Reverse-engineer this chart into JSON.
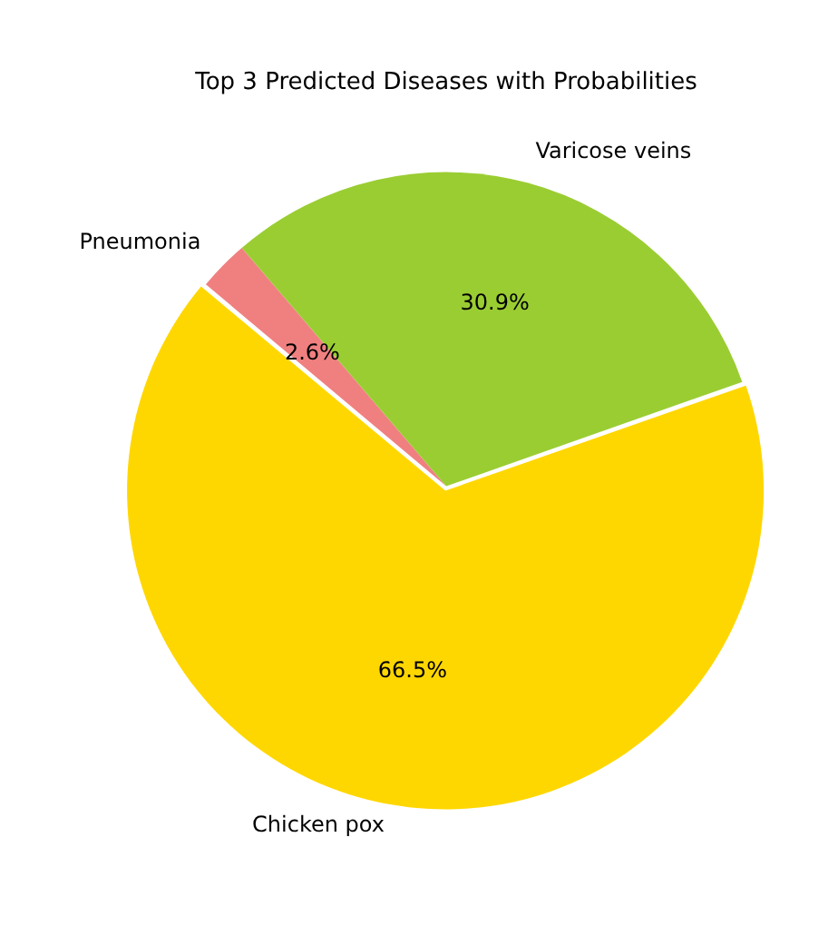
{
  "chart_data": {
    "type": "pie",
    "title": "Top 3 Predicted Diseases with Probabilities",
    "categories": [
      "Pneumonia",
      "Varicose veins",
      "Chicken pox"
    ],
    "values": [
      2.6,
      30.9,
      66.5
    ],
    "colors": [
      "#f08080",
      "#9acd32",
      "#ffd700"
    ],
    "value_labels": [
      "2.6%",
      "30.9%",
      "66.5%"
    ],
    "legend": false
  }
}
